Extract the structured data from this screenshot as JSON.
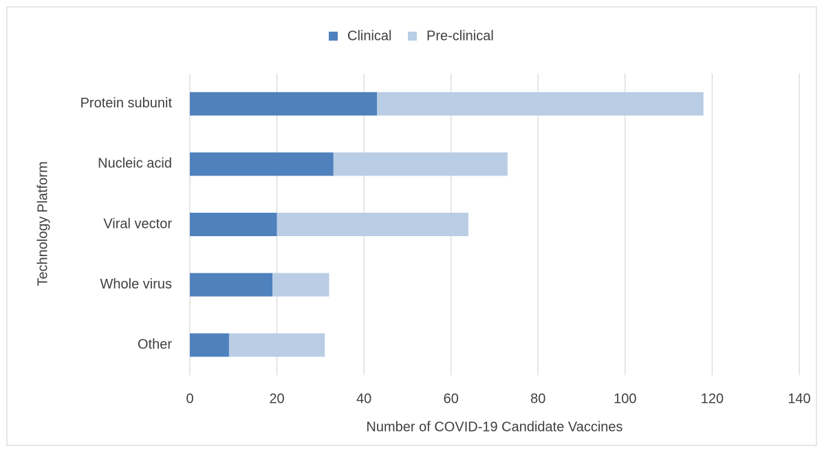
{
  "chart_data": {
    "type": "bar",
    "orientation": "horizontal",
    "stacked": true,
    "categories": [
      "Protein subunit",
      "Nucleic acid",
      "Viral vector",
      "Whole virus",
      "Other"
    ],
    "series": [
      {
        "name": "Clinical",
        "color": "#4f81bd",
        "values": [
          43,
          33,
          20,
          19,
          9
        ]
      },
      {
        "name": "Pre-clinical",
        "color": "#b9cde5",
        "values": [
          75,
          40,
          44,
          13,
          22
        ]
      }
    ],
    "xlabel": "Number of COVID-19 Candidate Vaccines",
    "ylabel": "Technology Platform",
    "xlim": [
      0,
      140
    ],
    "xticks": [
      0,
      20,
      40,
      60,
      80,
      100,
      120,
      140
    ],
    "grid": true,
    "legend": "top"
  }
}
